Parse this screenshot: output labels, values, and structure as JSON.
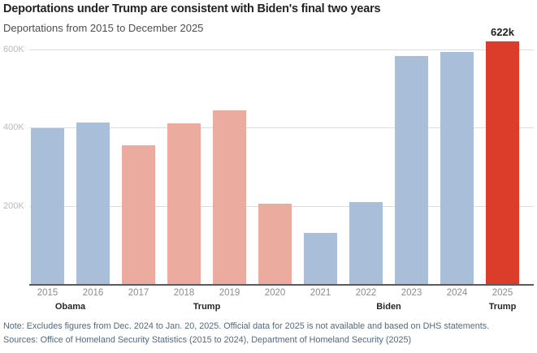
{
  "header": {
    "title": "Deportations under Trump are consistent with Biden's final two years",
    "subtitle": "Deportations from 2015 to December 2025"
  },
  "chart_data": {
    "type": "bar",
    "title": "Deportations under Trump are consistent with Biden's final two years",
    "subtitle": "Deportations from 2015 to December 2025",
    "unit": "thousands",
    "categories": [
      "2015",
      "2016",
      "2017",
      "2018",
      "2019",
      "2020",
      "2021",
      "2022",
      "2023",
      "2024",
      "2025"
    ],
    "values": [
      400,
      416,
      358,
      414,
      447,
      207,
      132,
      211,
      585,
      597,
      622
    ],
    "bar_parties": [
      "obama",
      "obama",
      "trump",
      "trump",
      "trump",
      "trump",
      "biden",
      "biden",
      "biden",
      "biden",
      "trump_2025"
    ],
    "ylim": [
      0,
      625
    ],
    "yticks": [
      {
        "value": 200,
        "label": "200K"
      },
      {
        "value": 400,
        "label": "400K"
      },
      {
        "value": 600,
        "label": "600K"
      }
    ],
    "grid": "horizontal",
    "legend": "none",
    "annotation": {
      "category": "2025",
      "label": "622k"
    },
    "president_groups": [
      {
        "label": "Obama",
        "start": 0,
        "span": 2
      },
      {
        "label": "Trump",
        "start": 2,
        "span": 4
      },
      {
        "label": "Biden",
        "start": 6,
        "span": 4
      },
      {
        "label": "Trump",
        "start": 10,
        "span": 1
      }
    ]
  },
  "colors": {
    "party_colors": {
      "obama": "#a9bed9",
      "trump": "#ecab9f",
      "biden": "#a9bed9",
      "trump_2025": "#dc3d2b"
    },
    "gridline": "#dcdcdc",
    "axis_line": "#5a5a5e",
    "note_text": "#52697c"
  },
  "footer": {
    "note": "Note: Excludes figures from Dec. 2024 to Jan. 20, 2025. Official data for 2025 is not available and based on DHS statements.",
    "sources": "Sources: Office of Homeland Security Statistics (2015 to 2024), Department of Homeland Security (2025)"
  }
}
